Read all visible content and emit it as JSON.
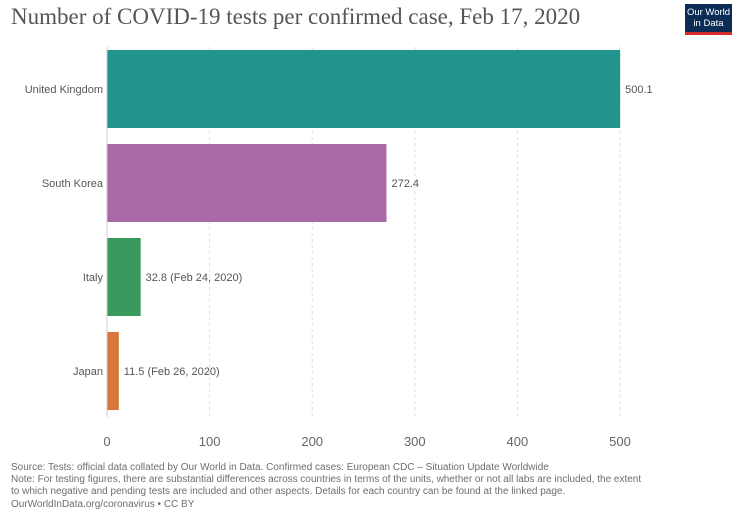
{
  "header": {
    "title": "Number of COVID-19 tests per confirmed case, Feb 17, 2020",
    "logo_line1": "Our World",
    "logo_line2": "in Data"
  },
  "footer": {
    "source": "Source: Tests: official data collated by Our World in Data. Confirmed cases: European CDC – Situation Update Worldwide",
    "note_line1": "Note: For testing figures, there are substantial differences across countries in terms of the units, whether or not all labs are included, the extent",
    "note_line2": "to which negative and pending tests are included and other aspects. Details for each country can be found at the linked page.",
    "license": "OurWorldInData.org/coronavirus • CC BY"
  },
  "colors": {
    "logo_bg": "#0b2d55",
    "logo_accent": "#d42b2b"
  },
  "chart_data": {
    "type": "bar",
    "orientation": "horizontal",
    "title": "Number of COVID-19 tests per confirmed case, Feb 17, 2020",
    "categories": [
      "United Kingdom",
      "South Korea",
      "Italy",
      "Japan"
    ],
    "values": [
      500.1,
      272.4,
      32.8,
      11.5
    ],
    "value_labels": [
      "500.1",
      "272.4",
      "32.8 (Feb 24, 2020)",
      "11.5 (Feb 26, 2020)"
    ],
    "colors": [
      "#21948e",
      "#a86aa8",
      "#3a9a5e",
      "#d9773a"
    ],
    "xlim": [
      0,
      500
    ],
    "xticks": [
      0,
      100,
      200,
      300,
      400,
      500
    ],
    "grid": true,
    "xlabel": "",
    "ylabel": ""
  }
}
